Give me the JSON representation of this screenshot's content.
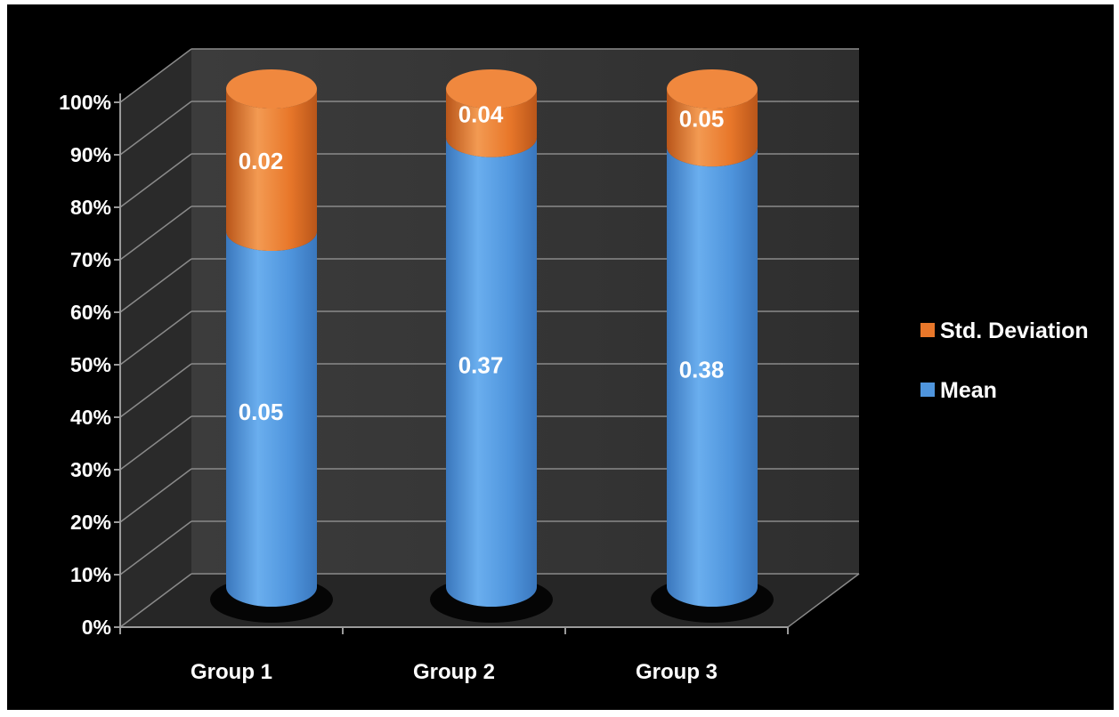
{
  "chart_data": {
    "type": "bar",
    "stacking": "percent",
    "style": "3d-cylinder",
    "background": "#000000",
    "categories": [
      "Group 1",
      "Group 2",
      "Group 3"
    ],
    "series": [
      {
        "name": "Mean",
        "values": [
          0.05,
          0.37,
          0.38
        ],
        "color": "#4f95dd"
      },
      {
        "name": "Std. Deviation",
        "values": [
          0.02,
          0.04,
          0.05
        ],
        "color": "#e8772a"
      }
    ],
    "y_tick_labels": [
      "0%",
      "10%",
      "20%",
      "30%",
      "40%",
      "50%",
      "60%",
      "70%",
      "80%",
      "90%",
      "100%"
    ],
    "ylim": [
      0,
      100
    ],
    "grid": true,
    "legend_position": "right",
    "legend_order": [
      "Std. Deviation",
      "Mean"
    ],
    "title": "",
    "xlabel": "",
    "ylabel": ""
  }
}
